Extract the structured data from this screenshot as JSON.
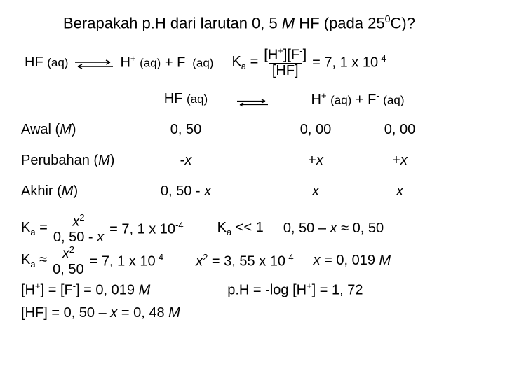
{
  "title_html": "Berapakah p.H dari larutan 0, 5 <i>M</i> HF (pada 25<sup>0</sup>C)?",
  "eq1": {
    "left": "HF <span style='font-size:0.85em'>(aq)</span>",
    "right": "H<sup>+</sup> <span style='font-size:0.85em'>(aq)</span> + F<sup>-</sup> <span style='font-size:0.85em'>(aq)</span>",
    "ka_lhs": "K<sub>a</sub> =",
    "ka_num": "[H<sup>+</sup>][F<sup>-</sup>]",
    "ka_den": "[HF]",
    "ka_val": "= 7, 1 x 10<sup>-4</sup>"
  },
  "table": {
    "hdr_c1": "HF <span style='font-size:0.85em'>(aq)</span>",
    "hdr_c2_c3": "H<sup>+</sup> <span style='font-size:0.85em'>(aq)</span> + F<sup>-</sup> <span style='font-size:0.85em'>(aq)</span>",
    "rows": [
      {
        "label": "Awal (<i>M</i>)",
        "c1": "0, 50",
        "c2": "0, 00",
        "c3": "0, 00"
      },
      {
        "label": "Perubahan (<i>M</i>)",
        "c1": "-<i>x</i>",
        "c2": "+<i>x</i>",
        "c3": "+<i>x</i>"
      },
      {
        "label": "Akhir (<i>M</i>)",
        "c1": "0, 50 - <i>x</i>",
        "c2": "<i>x</i>",
        "c3": "<i>x</i>"
      }
    ]
  },
  "calc": {
    "l1_l": "K<sub>a</sub> =",
    "l1_num": "<i>x</i><sup>2</sup>",
    "l1_den": "0, 50 - <i>x</i>",
    "l1_eq": "= 7, 1 x 10<sup>-4</sup>",
    "l1_r1": "K<sub>a</sub>  &lt;&lt; 1",
    "l1_r2": "0, 50 – <i>x</i> &#8776; 0, 50",
    "l2_l": "K<sub>a</sub> &#8776;",
    "l2_num": "<i>x</i><sup>2</sup>",
    "l2_den": "0, 50",
    "l2_eq": "= 7, 1 x 10<sup>-4</sup>",
    "l2_r1": "<i>x</i><sup>2</sup> = 3, 55 x 10<sup>-4</sup>",
    "l2_r2": "<i>x</i> = 0, 019 <i>M</i>",
    "l3": "[H<sup>+</sup>] = [F<sup>-</sup>] = 0, 019 <i>M</i>",
    "l3_r": "p.H = -log [H<sup>+</sup>] = 1, 72",
    "l4": "[HF] = 0, 50 – <i>x</i> = 0, 48 <i>M</i>"
  },
  "colors": {
    "text": "#000000",
    "bg": "#ffffff"
  }
}
